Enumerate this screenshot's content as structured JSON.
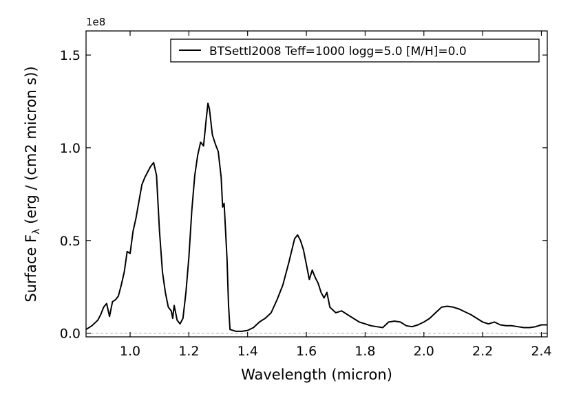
{
  "chart_data": {
    "type": "line",
    "title": "",
    "xlabel": "Wavelength (micron)",
    "ylabel_main": "Surface F",
    "ylabel_sub": "λ",
    "ylabel_rest": " (erg / (cm2 micron s))",
    "offset_label": "1e8",
    "xlim": [
      0.85,
      2.42
    ],
    "ylim": [
      -0.02,
      1.63
    ],
    "x_ticks": [
      1.0,
      1.2,
      1.4,
      1.6,
      1.8,
      2.0,
      2.2,
      2.4
    ],
    "x_tick_labels": [
      "1.0",
      "1.2",
      "1.4",
      "1.6",
      "1.8",
      "2.0",
      "2.2",
      "2.4"
    ],
    "y_ticks": [
      0.0,
      0.5,
      1.0,
      1.5
    ],
    "y_tick_labels": [
      "0.0",
      "0.5",
      "1.0",
      "1.5"
    ],
    "zero_line": {
      "y": 0.0,
      "style": "dashed",
      "color": "#aaaaaa"
    },
    "legend": {
      "placement": "top-right"
    },
    "series": [
      {
        "name": "BTSettl2008 Teff=1000 logg=5.0 [M/H]=0.0",
        "color": "#000000",
        "points": [
          [
            0.85,
            0.02
          ],
          [
            0.87,
            0.04
          ],
          [
            0.89,
            0.07
          ],
          [
            0.9,
            0.1
          ],
          [
            0.91,
            0.14
          ],
          [
            0.92,
            0.16
          ],
          [
            0.93,
            0.09
          ],
          [
            0.94,
            0.17
          ],
          [
            0.95,
            0.18
          ],
          [
            0.96,
            0.2
          ],
          [
            0.97,
            0.26
          ],
          [
            0.98,
            0.33
          ],
          [
            0.99,
            0.44
          ],
          [
            1.0,
            0.43
          ],
          [
            1.01,
            0.55
          ],
          [
            1.02,
            0.62
          ],
          [
            1.03,
            0.71
          ],
          [
            1.04,
            0.8
          ],
          [
            1.05,
            0.84
          ],
          [
            1.06,
            0.87
          ],
          [
            1.07,
            0.9
          ],
          [
            1.08,
            0.92
          ],
          [
            1.09,
            0.85
          ],
          [
            1.1,
            0.55
          ],
          [
            1.11,
            0.33
          ],
          [
            1.12,
            0.22
          ],
          [
            1.13,
            0.14
          ],
          [
            1.14,
            0.12
          ],
          [
            1.145,
            0.08
          ],
          [
            1.15,
            0.15
          ],
          [
            1.16,
            0.07
          ],
          [
            1.17,
            0.05
          ],
          [
            1.18,
            0.08
          ],
          [
            1.19,
            0.22
          ],
          [
            1.2,
            0.41
          ],
          [
            1.21,
            0.66
          ],
          [
            1.22,
            0.85
          ],
          [
            1.23,
            0.96
          ],
          [
            1.24,
            1.03
          ],
          [
            1.25,
            1.01
          ],
          [
            1.26,
            1.17
          ],
          [
            1.265,
            1.24
          ],
          [
            1.27,
            1.21
          ],
          [
            1.28,
            1.07
          ],
          [
            1.29,
            1.02
          ],
          [
            1.3,
            0.98
          ],
          [
            1.31,
            0.84
          ],
          [
            1.315,
            0.68
          ],
          [
            1.32,
            0.7
          ],
          [
            1.33,
            0.4
          ],
          [
            1.335,
            0.15
          ],
          [
            1.34,
            0.02
          ],
          [
            1.36,
            0.01
          ],
          [
            1.38,
            0.01
          ],
          [
            1.4,
            0.015
          ],
          [
            1.42,
            0.03
          ],
          [
            1.44,
            0.06
          ],
          [
            1.46,
            0.08
          ],
          [
            1.48,
            0.11
          ],
          [
            1.5,
            0.18
          ],
          [
            1.52,
            0.26
          ],
          [
            1.54,
            0.38
          ],
          [
            1.56,
            0.51
          ],
          [
            1.57,
            0.53
          ],
          [
            1.58,
            0.5
          ],
          [
            1.59,
            0.45
          ],
          [
            1.6,
            0.37
          ],
          [
            1.61,
            0.29
          ],
          [
            1.62,
            0.34
          ],
          [
            1.63,
            0.3
          ],
          [
            1.64,
            0.27
          ],
          [
            1.65,
            0.22
          ],
          [
            1.66,
            0.19
          ],
          [
            1.67,
            0.22
          ],
          [
            1.68,
            0.14
          ],
          [
            1.7,
            0.11
          ],
          [
            1.72,
            0.12
          ],
          [
            1.74,
            0.1
          ],
          [
            1.76,
            0.08
          ],
          [
            1.78,
            0.06
          ],
          [
            1.8,
            0.05
          ],
          [
            1.82,
            0.04
          ],
          [
            1.84,
            0.035
          ],
          [
            1.86,
            0.03
          ],
          [
            1.88,
            0.06
          ],
          [
            1.9,
            0.065
          ],
          [
            1.92,
            0.06
          ],
          [
            1.94,
            0.04
          ],
          [
            1.96,
            0.035
          ],
          [
            1.98,
            0.045
          ],
          [
            2.0,
            0.06
          ],
          [
            2.02,
            0.08
          ],
          [
            2.04,
            0.11
          ],
          [
            2.06,
            0.14
          ],
          [
            2.08,
            0.145
          ],
          [
            2.1,
            0.14
          ],
          [
            2.12,
            0.13
          ],
          [
            2.14,
            0.115
          ],
          [
            2.16,
            0.1
          ],
          [
            2.18,
            0.08
          ],
          [
            2.2,
            0.06
          ],
          [
            2.22,
            0.05
          ],
          [
            2.24,
            0.06
          ],
          [
            2.26,
            0.045
          ],
          [
            2.28,
            0.04
          ],
          [
            2.3,
            0.04
          ],
          [
            2.32,
            0.035
          ],
          [
            2.34,
            0.03
          ],
          [
            2.36,
            0.03
          ],
          [
            2.38,
            0.035
          ],
          [
            2.4,
            0.045
          ],
          [
            2.42,
            0.045
          ]
        ]
      }
    ]
  }
}
